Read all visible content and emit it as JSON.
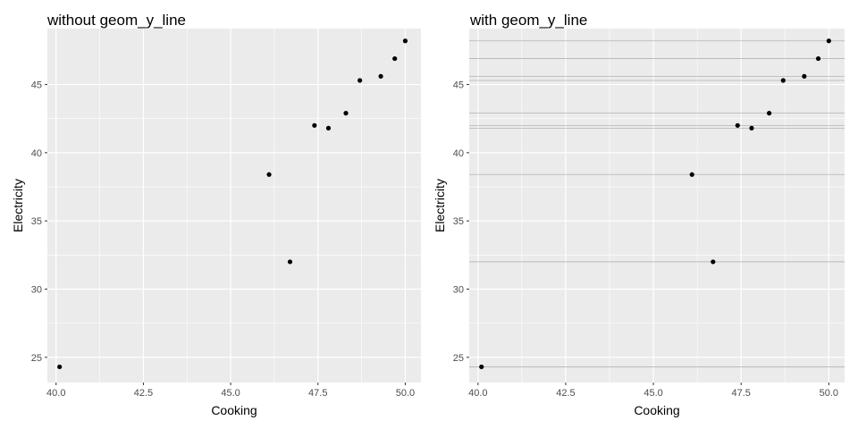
{
  "chart_data": [
    {
      "type": "scatter",
      "title": "without geom_y_line",
      "xlabel": "Cooking",
      "ylabel": "Electricity",
      "xlim": [
        39.75,
        50.45
      ],
      "ylim": [
        23.15,
        49.1
      ],
      "x_ticks": [
        "40.0",
        "42.5",
        "45.0",
        "47.5",
        "50.0"
      ],
      "y_ticks": [
        "25",
        "30",
        "35",
        "40",
        "45"
      ],
      "x_tick_values": [
        40.0,
        42.5,
        45.0,
        47.5,
        50.0
      ],
      "y_tick_values": [
        25,
        30,
        35,
        40,
        45
      ],
      "points": [
        {
          "x": 40.1,
          "y": 24.3
        },
        {
          "x": 46.1,
          "y": 38.4
        },
        {
          "x": 46.7,
          "y": 32.0
        },
        {
          "x": 47.4,
          "y": 42.0
        },
        {
          "x": 47.8,
          "y": 41.8
        },
        {
          "x": 48.3,
          "y": 42.9
        },
        {
          "x": 48.7,
          "y": 45.3
        },
        {
          "x": 49.3,
          "y": 45.6
        },
        {
          "x": 49.7,
          "y": 46.9
        },
        {
          "x": 50.0,
          "y": 48.2
        }
      ],
      "hlines": false,
      "grid": true,
      "colors": {
        "panel": "#ebebeb",
        "grid": "#ffffff",
        "point": "#000000",
        "hline": "#b3b3b3"
      }
    },
    {
      "type": "scatter",
      "title": "with geom_y_line",
      "xlabel": "Cooking",
      "ylabel": "Electricity",
      "xlim": [
        39.75,
        50.45
      ],
      "ylim": [
        23.15,
        49.1
      ],
      "x_ticks": [
        "40.0",
        "42.5",
        "45.0",
        "47.5",
        "50.0"
      ],
      "y_ticks": [
        "25",
        "30",
        "35",
        "40",
        "45"
      ],
      "x_tick_values": [
        40.0,
        42.5,
        45.0,
        47.5,
        50.0
      ],
      "y_tick_values": [
        25,
        30,
        35,
        40,
        45
      ],
      "points": [
        {
          "x": 40.1,
          "y": 24.3
        },
        {
          "x": 46.1,
          "y": 38.4
        },
        {
          "x": 46.7,
          "y": 32.0
        },
        {
          "x": 47.4,
          "y": 42.0
        },
        {
          "x": 47.8,
          "y": 41.8
        },
        {
          "x": 48.3,
          "y": 42.9
        },
        {
          "x": 48.7,
          "y": 45.3
        },
        {
          "x": 49.3,
          "y": 45.6
        },
        {
          "x": 49.7,
          "y": 46.9
        },
        {
          "x": 50.0,
          "y": 48.2
        }
      ],
      "hlines": true,
      "grid": true,
      "colors": {
        "panel": "#ebebeb",
        "grid": "#ffffff",
        "point": "#000000",
        "hline": "#b3b3b3"
      }
    }
  ]
}
